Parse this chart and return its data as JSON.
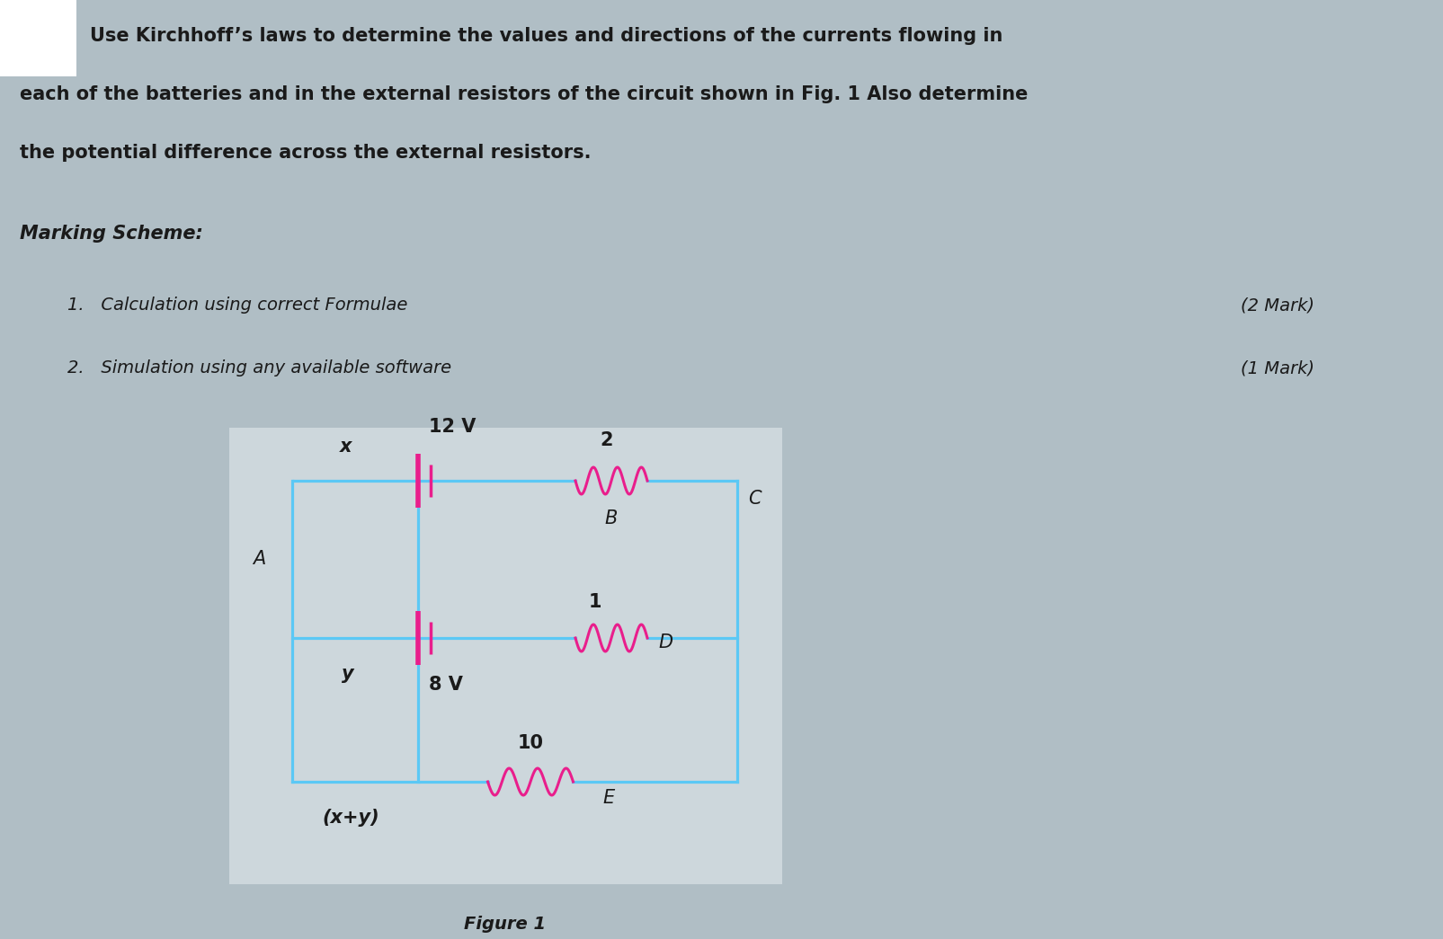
{
  "bg_color": "#b0bec5",
  "panel_color": "#cdd7dc",
  "wire_color": "#5bc8f5",
  "component_color": "#e91e8c",
  "text_color": "#1a1a1a",
  "title_line1": "Use Kirchhoff’s laws to determine the values and directions of the currents flowing in",
  "title_line2": "each of the batteries and in the external resistors of the circuit shown in Fig. 1 Also determine",
  "title_line3": "the potential difference across the external resistors.",
  "marking_scheme_label": "Marking Scheme:",
  "item1_text": "1.   Calculation using correct Formulae",
  "item1_mark": "(2 Mark)",
  "item2_text": "2.   Simulation using any available software",
  "item2_mark": "(1 Mark)",
  "figure_label": "Figure 1"
}
